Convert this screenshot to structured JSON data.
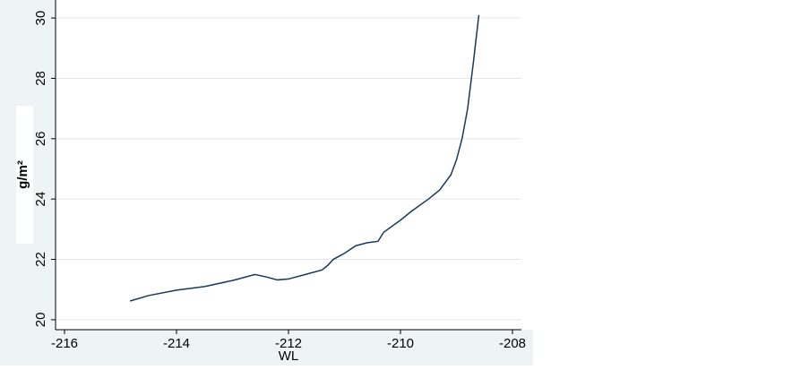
{
  "chart_data": {
    "type": "line",
    "x_label": "WL",
    "y_label": "g/m²",
    "x": [
      -214.83,
      -214.5,
      -214.0,
      -213.5,
      -213.0,
      -212.6,
      -212.4,
      -212.2,
      -212.0,
      -211.7,
      -211.4,
      -211.3,
      -211.2,
      -211.0,
      -210.8,
      -210.6,
      -210.4,
      -210.3,
      -210.0,
      -209.8,
      -209.5,
      -209.3,
      -209.1,
      -209.0,
      -208.9,
      -208.8,
      -208.7,
      -208.6
    ],
    "series": [
      {
        "color": "#1a3a5c",
        "values": [
          20.62,
          20.8,
          20.98,
          21.1,
          21.3,
          21.5,
          21.42,
          21.32,
          21.35,
          21.5,
          21.65,
          21.8,
          22.0,
          22.2,
          22.45,
          22.55,
          22.6,
          22.9,
          23.3,
          23.6,
          24.0,
          24.3,
          24.8,
          25.3,
          26.0,
          27.0,
          28.5,
          30.1
        ]
      }
    ],
    "xlim": [
      -216.16,
      -207.84
    ],
    "ylim": [
      19.67,
      30.3
    ],
    "xticks": [
      -216,
      -214,
      -212,
      -210,
      -208
    ],
    "yticks": [
      20,
      22,
      24,
      26,
      28,
      30
    ],
    "grid": true
  }
}
